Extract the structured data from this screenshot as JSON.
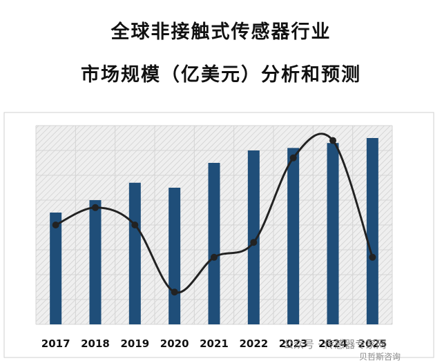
{
  "chart_data": {
    "type": "bar",
    "title": "全球非接触式传感器行业",
    "subtitle": "市场规模（亿美元）分析和预测",
    "xlabel": "",
    "ylabel": "",
    "categories": [
      "2017",
      "2018",
      "2019",
      "2020",
      "2021",
      "2022",
      "2023",
      "2024",
      "2025"
    ],
    "series": [
      {
        "type": "bar",
        "values": [
          45,
          50,
          57,
          55,
          65,
          70,
          71,
          73,
          75
        ],
        "color": "#1f4e79"
      },
      {
        "type": "line",
        "values": [
          40,
          47,
          40,
          13,
          27,
          33,
          67,
          74,
          27
        ],
        "color": "#222222"
      }
    ],
    "ylim": [
      0,
      80
    ],
    "grid": true,
    "legend": "none"
  },
  "watermark": {
    "line1": "公众号 · 传感器专家网",
    "line2": "贝哲斯咨询"
  }
}
